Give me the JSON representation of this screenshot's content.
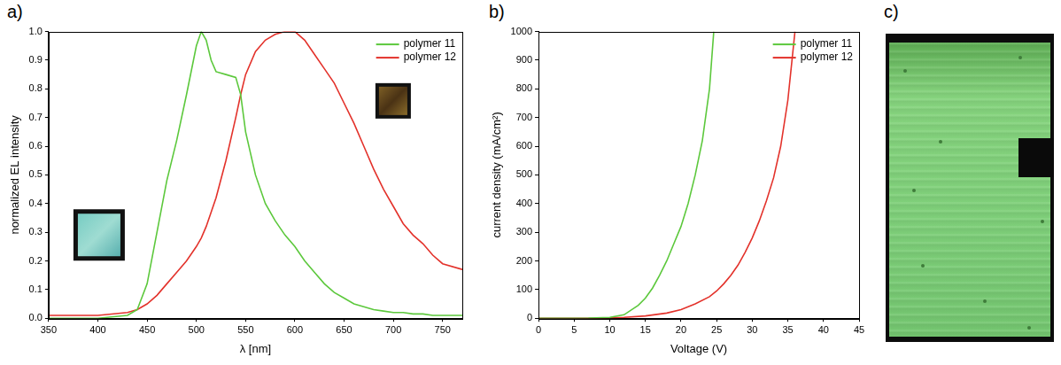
{
  "chart_data": [
    {
      "type": "line",
      "panel": "a)",
      "x_label": "λ [nm]",
      "y_label": "normalized EL intensity",
      "x": [
        350,
        400,
        430,
        440,
        450,
        460,
        470,
        480,
        490,
        500,
        505,
        510,
        515,
        520,
        530,
        540,
        545,
        550,
        560,
        570,
        580,
        590,
        600,
        610,
        620,
        630,
        640,
        650,
        660,
        670,
        680,
        690,
        700,
        710,
        720,
        730,
        740,
        750,
        770
      ],
      "series": [
        {
          "name": "polymer 11",
          "color": "#5cc83c",
          "marker": "none",
          "line_style": "solid",
          "values": [
            0.0,
            0.0,
            0.01,
            0.03,
            0.12,
            0.3,
            0.48,
            0.62,
            0.78,
            0.95,
            1.0,
            0.97,
            0.9,
            0.86,
            0.85,
            0.84,
            0.78,
            0.65,
            0.5,
            0.4,
            0.34,
            0.29,
            0.25,
            0.2,
            0.16,
            0.12,
            0.09,
            0.07,
            0.05,
            0.04,
            0.03,
            0.025,
            0.02,
            0.02,
            0.015,
            0.015,
            0.01,
            0.01,
            0.01
          ]
        },
        {
          "name": "polymer 12",
          "color": "#e3322b",
          "marker": "none",
          "line_style": "solid",
          "values": [
            0.01,
            0.01,
            0.02,
            0.03,
            0.05,
            0.08,
            0.12,
            0.16,
            0.2,
            0.25,
            0.28,
            0.32,
            0.37,
            0.42,
            0.55,
            0.7,
            0.78,
            0.85,
            0.93,
            0.97,
            0.99,
            1.0,
            1.0,
            0.97,
            0.92,
            0.87,
            0.82,
            0.75,
            0.68,
            0.6,
            0.52,
            0.45,
            0.39,
            0.33,
            0.29,
            0.26,
            0.22,
            0.19,
            0.17
          ]
        }
      ],
      "xlim": [
        350,
        770
      ],
      "xticks": [
        350,
        400,
        450,
        500,
        550,
        600,
        650,
        700,
        750
      ],
      "ylim": [
        0,
        1
      ],
      "yticks": [
        {
          "value": 0,
          "label": "0.0"
        },
        0.1,
        0.2,
        0.3,
        0.4,
        0.5,
        0.6,
        0.7,
        0.8,
        0.9,
        {
          "value": 1,
          "label": "1.0"
        }
      ],
      "grid": false,
      "legend": "top-right"
    },
    {
      "type": "line",
      "panel": "b)",
      "x_label": "Voltage (V)",
      "y_label": "current density (mA/cm²)",
      "series": [
        {
          "name": "polymer 11",
          "color": "#5cc83c",
          "marker": "none",
          "line_style": "solid",
          "x": [
            0,
            5,
            7,
            10,
            12,
            14,
            15,
            16,
            17,
            18,
            19,
            20,
            21,
            22,
            23,
            24,
            24.6
          ],
          "values": [
            0,
            0,
            0.5,
            3,
            12,
            45,
            70,
            105,
            150,
            200,
            260,
            320,
            400,
            500,
            620,
            800,
            1000
          ]
        },
        {
          "name": "polymer 12",
          "color": "#e3322b",
          "marker": "none",
          "line_style": "solid",
          "x": [
            0,
            8,
            10,
            12,
            15,
            18,
            20,
            22,
            24,
            25,
            26,
            27,
            28,
            29,
            30,
            31,
            32,
            33,
            34,
            35,
            36
          ],
          "values": [
            0,
            0,
            1,
            3,
            8,
            18,
            30,
            50,
            75,
            95,
            120,
            150,
            185,
            230,
            280,
            340,
            410,
            490,
            600,
            760,
            1000
          ]
        }
      ],
      "xlim": [
        0,
        45
      ],
      "xticks": [
        0,
        5,
        10,
        15,
        20,
        25,
        30,
        35,
        40,
        45
      ],
      "ylim": [
        0,
        1000
      ],
      "yticks": [
        0,
        100,
        200,
        300,
        400,
        500,
        600,
        700,
        800,
        900,
        1000
      ],
      "grid": false,
      "legend": "top-right"
    },
    {
      "type": "image",
      "panel": "c)"
    }
  ]
}
